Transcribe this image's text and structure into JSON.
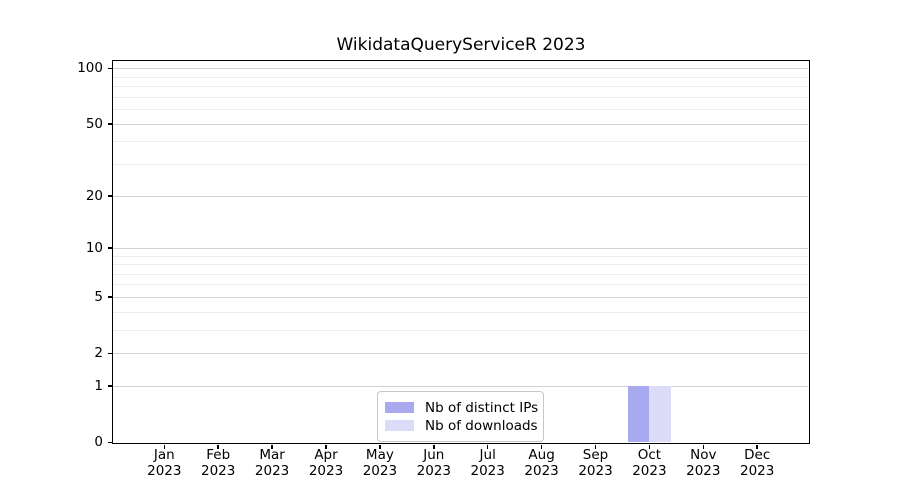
{
  "figure": {
    "background": "#ffffff"
  },
  "chart_data": {
    "type": "bar",
    "title": "WikidataQueryServiceR 2023",
    "categories": [
      "Jan 2023",
      "Feb 2023",
      "Mar 2023",
      "Apr 2023",
      "May 2023",
      "Jun 2023",
      "Jul 2023",
      "Aug 2023",
      "Sep 2023",
      "Oct 2023",
      "Nov 2023",
      "Dec 2023"
    ],
    "series": [
      {
        "name": "Nb of distinct IPs",
        "color": "#a9a9f0",
        "values": [
          0,
          0,
          0,
          0,
          0,
          0,
          0,
          0,
          0,
          1,
          0,
          0
        ]
      },
      {
        "name": "Nb of downloads",
        "color": "#dcdcf8",
        "values": [
          0,
          0,
          0,
          0,
          0,
          0,
          0,
          0,
          0,
          1,
          0,
          0
        ]
      }
    ],
    "y_axis": {
      "scale": "log1p",
      "tick_values": [
        0,
        1,
        2,
        5,
        10,
        20,
        50,
        100
      ],
      "tick_labels": [
        "0",
        "1",
        "2",
        "5",
        "10",
        "20",
        "50",
        "100"
      ],
      "major_gridlines": [
        1,
        2,
        5,
        10,
        20,
        50,
        100
      ],
      "minor_gridlines": [
        3,
        4,
        6,
        7,
        8,
        9,
        30,
        40,
        60,
        70,
        80,
        90
      ],
      "range": [
        0,
        113
      ]
    },
    "legend": {
      "position": "lower center",
      "entries": [
        "Nb of distinct IPs",
        "Nb of downloads"
      ]
    },
    "colors": {
      "major_grid": "#d2d2d2",
      "minor_grid": "#ececec",
      "spine": "#000000"
    },
    "grid": "on"
  }
}
